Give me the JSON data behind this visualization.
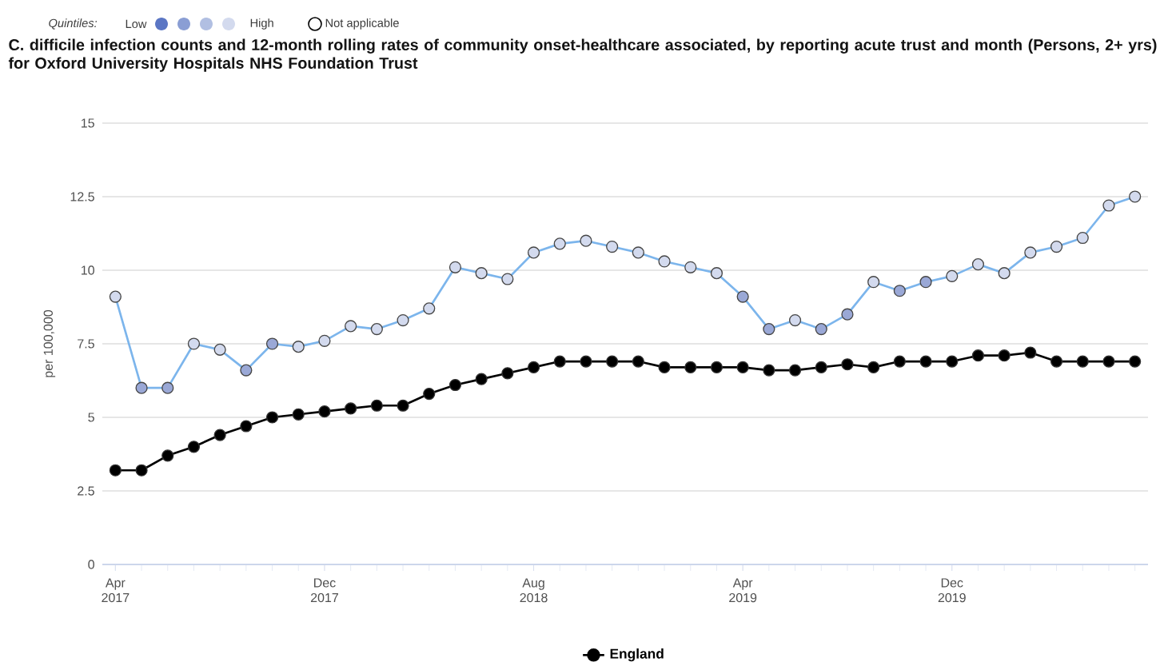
{
  "chart_data": {
    "type": "line",
    "title": "C. difficile infection counts and 12-month rolling rates of community onset-healthcare associated, by reporting acute trust and month (Persons, 2+ yrs) for Oxford University Hospitals NHS Foundation Trust",
    "annotations": [
      "Quintiles:",
      "Low",
      "High",
      "Not applicable"
    ],
    "ylabel": "per 100,000",
    "x": [
      "2017-04",
      "2017-05",
      "2017-06",
      "2017-07",
      "2017-08",
      "2017-09",
      "2017-10",
      "2017-11",
      "2017-12",
      "2018-01",
      "2018-02",
      "2018-03",
      "2018-04",
      "2018-05",
      "2018-06",
      "2018-07",
      "2018-08",
      "2018-09",
      "2018-10",
      "2018-11",
      "2018-12",
      "2019-01",
      "2019-02",
      "2019-03",
      "2019-04",
      "2019-05",
      "2019-06",
      "2019-07",
      "2019-08",
      "2019-09",
      "2019-10",
      "2019-11",
      "2019-12",
      "2020-01",
      "2020-02",
      "2020-03",
      "2020-04",
      "2020-05",
      "2020-06",
      "2020-07"
    ],
    "series": [
      {
        "color": "#7cb5ec",
        "values": [
          9.1,
          6.0,
          6.0,
          7.5,
          7.3,
          6.6,
          7.5,
          7.4,
          7.6,
          8.1,
          8.0,
          8.3,
          8.7,
          10.1,
          9.9,
          9.7,
          10.6,
          10.9,
          11.0,
          10.8,
          10.6,
          10.3,
          10.1,
          9.9,
          9.1,
          8.0,
          8.3,
          8.0,
          8.5,
          9.6,
          9.3,
          9.6,
          9.8,
          10.2,
          9.9,
          10.6,
          10.8,
          11.1,
          12.2,
          12.5
        ],
        "colors": [
          "#d3daee",
          "#9aa8d6",
          "#9aa8d6",
          "#d3daee",
          "#d3daee",
          "#9aa8d6",
          "#9aa8d6",
          "#d3daee",
          "#d3daee",
          "#d3daee",
          "#d3daee",
          "#d3daee",
          "#d3daee",
          "#d3daee",
          "#d3daee",
          "#d3daee",
          "#d3daee",
          "#d3daee",
          "#d3daee",
          "#d3daee",
          "#d3daee",
          "#d3daee",
          "#d3daee",
          "#d3daee",
          "#9aa8d6",
          "#9aa8d6",
          "#d3daee",
          "#9aa8d6",
          "#9aa8d6",
          "#d3daee",
          "#9aa8d6",
          "#9aa8d6",
          "#d3daee",
          "#d3daee",
          "#d3daee",
          "#d3daee",
          "#d3daee",
          "#d3daee",
          "#d3daee",
          "#d3daee"
        ]
      },
      {
        "name": "England",
        "color": "#000000",
        "values": [
          3.2,
          3.2,
          3.7,
          4.0,
          4.4,
          4.7,
          5.0,
          5.1,
          5.2,
          5.3,
          5.4,
          5.4,
          5.8,
          6.1,
          6.3,
          6.5,
          6.7,
          6.9,
          6.9,
          6.9,
          6.9,
          6.7,
          6.7,
          6.7,
          6.7,
          6.6,
          6.6,
          6.7,
          6.8,
          6.7,
          6.9,
          6.9,
          6.9,
          7.1,
          7.1,
          7.2,
          6.9,
          6.9,
          6.9,
          6.9
        ]
      }
    ],
    "xlim": [
      "2017-03-16",
      "2020-07-16"
    ],
    "xticks": [
      {
        "value": "2017-04",
        "label": "Apr 2017"
      },
      {
        "value": "2017-12",
        "label": "Dec 2017"
      },
      {
        "value": "2018-08",
        "label": "Aug 2018"
      },
      {
        "value": "2019-04",
        "label": "Apr 2019"
      },
      {
        "value": "2019-12",
        "label": "Dec 2019"
      }
    ],
    "ylim": [
      0,
      15
    ],
    "yticks": [
      0,
      2.5,
      5,
      7.5,
      10,
      12.5,
      15
    ],
    "grid": "y",
    "legend": "bottom",
    "marker": "circle",
    "line_style": "solid"
  }
}
